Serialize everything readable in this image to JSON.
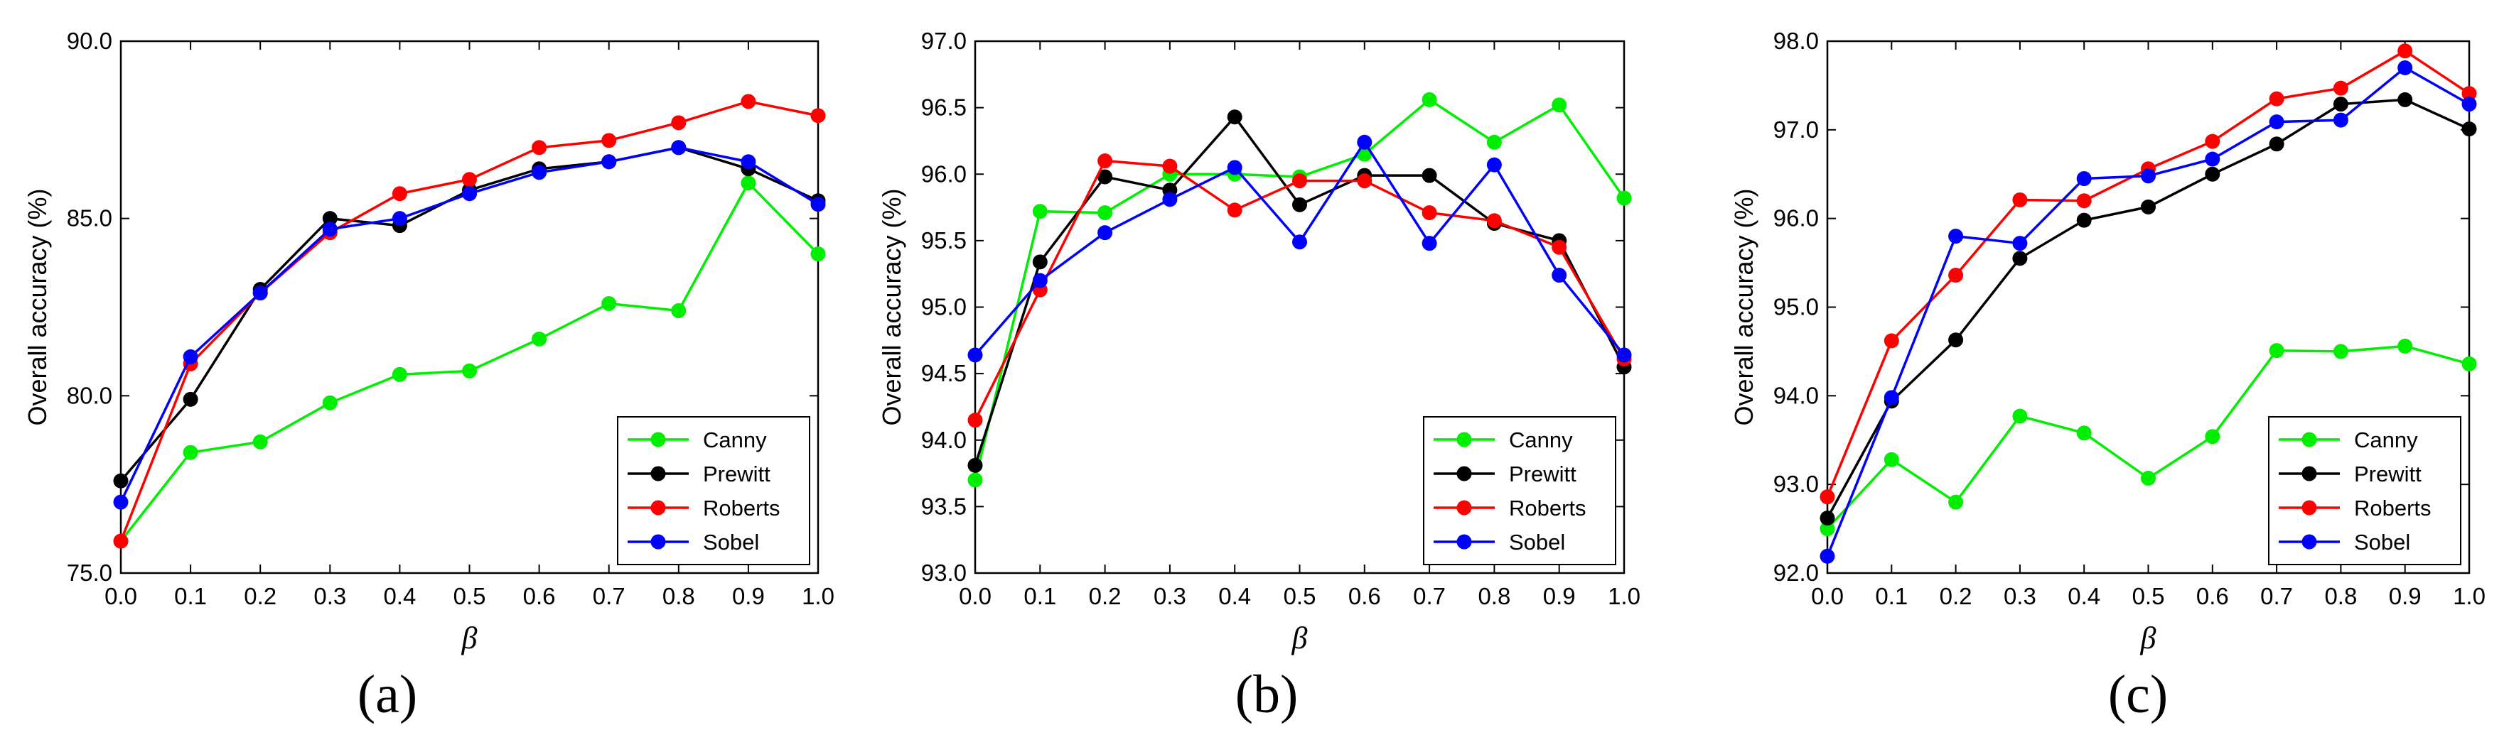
{
  "chart_data": [
    {
      "type": "line",
      "caption": "(a)",
      "xlabel": "β",
      "ylabel": "Overall accuracy (%)",
      "x": [
        0.0,
        0.1,
        0.2,
        0.3,
        0.4,
        0.5,
        0.6,
        0.7,
        0.8,
        0.9,
        1.0
      ],
      "xtick_labels": [
        "0.0",
        "0.1",
        "0.2",
        "0.3",
        "0.4",
        "0.5",
        "0.6",
        "0.7",
        "0.8",
        "0.9",
        "1.0"
      ],
      "ylim": [
        75.0,
        90.0
      ],
      "ytick_values": [
        75,
        80,
        85,
        90
      ],
      "ytick_labels": [
        "75.0",
        "80.0",
        "85.0",
        "90.0"
      ],
      "legend_position": "bottom-right",
      "series": [
        {
          "name": "Canny",
          "color": "#00ee00",
          "values": [
            75.9,
            78.4,
            78.7,
            79.8,
            80.6,
            80.7,
            81.6,
            82.6,
            82.4,
            86.0,
            84.0
          ]
        },
        {
          "name": "Prewitt",
          "color": "#000000",
          "values": [
            77.6,
            79.9,
            83.0,
            85.0,
            84.8,
            85.8,
            86.4,
            86.6,
            87.0,
            86.4,
            85.5
          ]
        },
        {
          "name": "Roberts",
          "color": "#ff0000",
          "values": [
            75.9,
            80.9,
            82.9,
            84.6,
            85.7,
            86.1,
            87.0,
            87.2,
            87.7,
            88.3,
            87.9
          ]
        },
        {
          "name": "Sobel",
          "color": "#0000ff",
          "values": [
            77.0,
            81.1,
            82.9,
            84.7,
            85.0,
            85.7,
            86.3,
            86.6,
            87.0,
            86.6,
            85.4
          ]
        }
      ]
    },
    {
      "type": "line",
      "caption": "(b)",
      "xlabel": "β",
      "ylabel": "Overall accuracy (%)",
      "x": [
        0.0,
        0.1,
        0.2,
        0.3,
        0.4,
        0.5,
        0.6,
        0.7,
        0.8,
        0.9,
        1.0
      ],
      "xtick_labels": [
        "0.0",
        "0.1",
        "0.2",
        "0.3",
        "0.4",
        "0.5",
        "0.6",
        "0.7",
        "0.8",
        "0.9",
        "1.0"
      ],
      "ylim": [
        93.0,
        97.0
      ],
      "ytick_values": [
        93.0,
        93.5,
        94.0,
        94.5,
        95.0,
        95.5,
        96.0,
        96.5,
        97.0
      ],
      "ytick_labels": [
        "93.0",
        "93.5",
        "94.0",
        "94.5",
        "95.0",
        "95.5",
        "96.0",
        "96.5",
        "97.0"
      ],
      "legend_position": "bottom-right",
      "series": [
        {
          "name": "Canny",
          "color": "#00ee00",
          "values": [
            93.7,
            95.72,
            95.71,
            96.0,
            96.0,
            95.98,
            96.15,
            96.56,
            96.24,
            96.52,
            95.82
          ]
        },
        {
          "name": "Prewitt",
          "color": "#000000",
          "values": [
            93.81,
            95.34,
            95.98,
            95.88,
            96.43,
            95.77,
            95.99,
            95.99,
            95.63,
            95.5,
            94.55
          ]
        },
        {
          "name": "Roberts",
          "color": "#ff0000",
          "values": [
            94.15,
            95.13,
            96.1,
            96.06,
            95.73,
            95.95,
            95.95,
            95.71,
            95.65,
            95.45,
            94.61
          ]
        },
        {
          "name": "Sobel",
          "color": "#0000ff",
          "values": [
            94.64,
            95.2,
            95.56,
            95.81,
            96.05,
            95.49,
            96.24,
            95.48,
            96.07,
            95.24,
            94.64
          ]
        }
      ]
    },
    {
      "type": "line",
      "caption": "(c)",
      "xlabel": "β",
      "ylabel": "Overall accuracy (%)",
      "x": [
        0.0,
        0.1,
        0.2,
        0.3,
        0.4,
        0.5,
        0.6,
        0.7,
        0.8,
        0.9,
        1.0
      ],
      "xtick_labels": [
        "0.0",
        "0.1",
        "0.2",
        "0.3",
        "0.4",
        "0.5",
        "0.6",
        "0.7",
        "0.8",
        "0.9",
        "1.0"
      ],
      "ylim": [
        92.0,
        98.0
      ],
      "ytick_values": [
        92,
        93,
        94,
        95,
        96,
        97,
        98
      ],
      "ytick_labels": [
        "92.0",
        "93.0",
        "94.0",
        "95.0",
        "96.0",
        "97.0",
        "98.0"
      ],
      "legend_position": "bottom-right",
      "series": [
        {
          "name": "Canny",
          "color": "#00ee00",
          "values": [
            92.5,
            93.28,
            92.8,
            93.77,
            93.58,
            93.07,
            93.54,
            94.51,
            94.5,
            94.56,
            94.36
          ]
        },
        {
          "name": "Prewitt",
          "color": "#000000",
          "values": [
            92.62,
            93.94,
            94.63,
            95.55,
            95.98,
            96.13,
            96.5,
            96.84,
            97.29,
            97.34,
            97.01
          ]
        },
        {
          "name": "Roberts",
          "color": "#ff0000",
          "values": [
            92.86,
            94.62,
            95.36,
            96.21,
            96.2,
            96.56,
            96.87,
            97.35,
            97.47,
            97.89,
            97.41
          ]
        },
        {
          "name": "Sobel",
          "color": "#0000ff",
          "values": [
            92.19,
            93.98,
            95.8,
            95.72,
            96.45,
            96.48,
            96.67,
            97.09,
            97.11,
            97.7,
            97.29
          ]
        }
      ]
    }
  ]
}
